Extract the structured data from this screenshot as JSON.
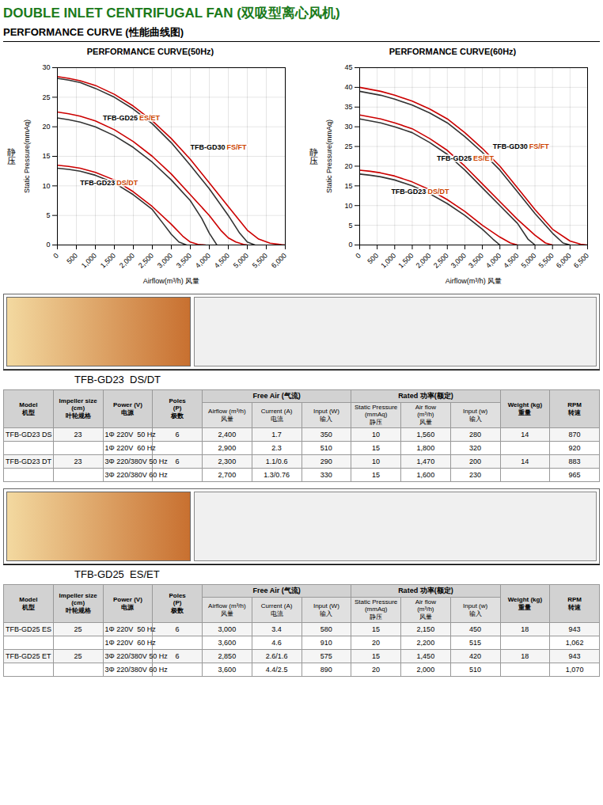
{
  "title": "DOUBLE INLET CENTRIFUGAL FAN (双吸型离心风机)",
  "subtitle": "PERFORMANCE CURVE (性能曲线图)",
  "chart_data": [
    {
      "type": "line",
      "title": "PERFORMANCE CURVE(50Hz)",
      "xlabel": "Airflow(m³/h) 风量",
      "ylabel": "Static Pressure(mmAq)",
      "ylabel_cn": "静压",
      "xlim": [
        0,
        6000
      ],
      "ylim": [
        0,
        30
      ],
      "xticks": [
        0,
        500,
        {
          "value": 1000,
          "label": "1,000"
        },
        {
          "value": 1500,
          "label": "1,500"
        },
        {
          "value": 2000,
          "label": "2,000"
        },
        {
          "value": 2500,
          "label": "2,500"
        },
        {
          "value": 3000,
          "label": "3,000"
        },
        {
          "value": 3500,
          "label": "3,500"
        },
        {
          "value": 4000,
          "label": "4,000"
        },
        {
          "value": 4500,
          "label": "4,500"
        },
        {
          "value": 5000,
          "label": "5,000"
        },
        {
          "value": 5500,
          "label": "5,500"
        },
        {
          "value": 6000,
          "label": "6,000"
        }
      ],
      "yticks": [
        0,
        5,
        10,
        15,
        20,
        25,
        30
      ],
      "grid": true,
      "series": [
        {
          "color": "#cc0000",
          "x": [
            0,
            300,
            600,
            1000,
            1500,
            2000,
            2500,
            3000,
            3500,
            4000,
            4500,
            5000,
            5300,
            5600,
            5900,
            6000
          ],
          "values": [
            28.5,
            28.2,
            27.8,
            27.0,
            25.5,
            23.5,
            21.0,
            18.0,
            14.5,
            10.5,
            6.5,
            2.5,
            1.0,
            0.3,
            0.05,
            0
          ]
        },
        {
          "color": "#333333",
          "x": [
            0,
            300,
            600,
            1000,
            1500,
            2000,
            2500,
            3000,
            3500,
            4000,
            4500,
            4800,
            5000,
            5200
          ],
          "values": [
            28.2,
            27.9,
            27.5,
            26.5,
            25.0,
            23.0,
            20.5,
            17.3,
            13.5,
            9.5,
            5.0,
            2.0,
            0.5,
            0
          ]
        },
        {
          "color": "#cc0000",
          "x": [
            0,
            300,
            600,
            1000,
            1500,
            2000,
            2500,
            3000,
            3500,
            4000,
            4300,
            4500,
            4700,
            4900,
            5000
          ],
          "values": [
            22.5,
            22.2,
            21.8,
            21.0,
            19.5,
            17.5,
            15.0,
            12.0,
            8.5,
            5.0,
            2.5,
            1.2,
            0.5,
            0.1,
            0
          ]
        },
        {
          "color": "#333333",
          "x": [
            0,
            300,
            600,
            1000,
            1500,
            2000,
            2500,
            3000,
            3500,
            3800,
            4000,
            4200
          ],
          "values": [
            21.5,
            21.2,
            20.8,
            20.0,
            18.5,
            16.5,
            14.0,
            11.0,
            7.5,
            4.5,
            2.0,
            0
          ]
        },
        {
          "color": "#cc0000",
          "x": [
            0,
            300,
            600,
            1000,
            1500,
            2000,
            2500,
            3000,
            3300,
            3500,
            3700,
            3900
          ],
          "values": [
            13.5,
            13.3,
            13.0,
            12.3,
            11.0,
            9.0,
            6.5,
            3.5,
            1.5,
            0.5,
            0.1,
            0
          ]
        },
        {
          "color": "#333333",
          "x": [
            0,
            300,
            600,
            1000,
            1500,
            2000,
            2500,
            2800,
            3000,
            3200,
            3400
          ],
          "values": [
            13.0,
            12.8,
            12.5,
            11.8,
            10.5,
            8.5,
            6.0,
            3.5,
            1.8,
            0.5,
            0
          ]
        }
      ],
      "annotations": [
        {
          "x": 3500,
          "y": 16.5,
          "parts": [
            {
              "text": "TFB-GD30"
            },
            {
              "text": "FS/FT",
              "color": "#cc4400"
            }
          ]
        },
        {
          "x": 1200,
          "y": 21.5,
          "parts": [
            {
              "text": "TFB-GD25"
            },
            {
              "text": "ES/ET",
              "color": "#cc4400"
            }
          ]
        },
        {
          "x": 600,
          "y": 10.5,
          "parts": [
            {
              "text": "TFB-GD23"
            },
            {
              "text": "DS/DT",
              "color": "#cc4400"
            }
          ]
        }
      ]
    },
    {
      "type": "line",
      "title": "PERFORMANCE CURVE(60Hz)",
      "xlabel": "Airflow(m³/h) 风量",
      "ylabel": "Static Pressure(mmAq)",
      "ylabel_cn": "静压",
      "xlim": [
        0,
        6500
      ],
      "ylim": [
        0,
        45
      ],
      "xticks": [
        0,
        500,
        {
          "value": 1000,
          "label": "1,000"
        },
        {
          "value": 1500,
          "label": "1,500"
        },
        {
          "value": 2000,
          "label": "2,000"
        },
        {
          "value": 2500,
          "label": "2,500"
        },
        {
          "value": 3000,
          "label": "3,000"
        },
        {
          "value": 3500,
          "label": "3,500"
        },
        {
          "value": 4000,
          "label": "4,000"
        },
        {
          "value": 4500,
          "label": "4,500"
        },
        {
          "value": 5000,
          "label": "5,000"
        },
        {
          "value": 5500,
          "label": "5,500"
        },
        {
          "value": 6000,
          "label": "6,000"
        },
        {
          "value": 6500,
          "label": "6,500"
        }
      ],
      "yticks": [
        0,
        5,
        10,
        15,
        20,
        25,
        30,
        35,
        40,
        45
      ],
      "grid": true,
      "series": [
        {
          "color": "#cc0000",
          "x": [
            0,
            300,
            600,
            1000,
            1500,
            2000,
            2500,
            3000,
            3500,
            4000,
            4500,
            5000,
            5500,
            6000,
            6300,
            6500
          ],
          "values": [
            40,
            39.5,
            39,
            38,
            36.5,
            34.5,
            32,
            28.5,
            24.5,
            20,
            14.5,
            9,
            4,
            1,
            0.2,
            0
          ]
        },
        {
          "color": "#333333",
          "x": [
            0,
            300,
            600,
            1000,
            1500,
            2000,
            2500,
            3000,
            3500,
            4000,
            4500,
            5000,
            5500,
            5800,
            6000
          ],
          "values": [
            39,
            38.5,
            38,
            37,
            35.5,
            33.5,
            31,
            27.5,
            23.5,
            19,
            13.5,
            8,
            3,
            0.5,
            0
          ]
        },
        {
          "color": "#cc0000",
          "x": [
            0,
            300,
            600,
            1000,
            1500,
            2000,
            2500,
            3000,
            3500,
            4000,
            4500,
            5000,
            5300,
            5500
          ],
          "values": [
            33,
            32.5,
            32,
            31,
            29.5,
            27,
            24,
            20,
            15.5,
            11,
            6.5,
            2.5,
            0.5,
            0
          ]
        },
        {
          "color": "#333333",
          "x": [
            0,
            300,
            600,
            1000,
            1500,
            2000,
            2500,
            3000,
            3500,
            4000,
            4500,
            4800,
            5000
          ],
          "values": [
            32,
            31.5,
            31,
            30,
            28.5,
            26,
            23,
            19,
            14.5,
            10,
            5.5,
            1.5,
            0
          ]
        },
        {
          "color": "#cc0000",
          "x": [
            0,
            300,
            600,
            1000,
            1500,
            2000,
            2500,
            3000,
            3500,
            4000,
            4300,
            4500
          ],
          "values": [
            19,
            18.7,
            18.3,
            17.5,
            16,
            14,
            11.5,
            8.5,
            5,
            2,
            0.5,
            0
          ]
        },
        {
          "color": "#333333",
          "x": [
            0,
            300,
            600,
            1000,
            1500,
            2000,
            2500,
            3000,
            3500,
            3800,
            4000
          ],
          "values": [
            18,
            17.7,
            17.3,
            16.5,
            15,
            13,
            10.5,
            7.5,
            4,
            1.5,
            0
          ]
        }
      ],
      "annotations": [
        {
          "x": 3800,
          "y": 25,
          "parts": [
            {
              "text": "TFB-GD30"
            },
            {
              "text": "FS/FT",
              "color": "#cc4400"
            }
          ]
        },
        {
          "x": 2200,
          "y": 22,
          "parts": [
            {
              "text": "TFB-GD25"
            },
            {
              "text": "ES/ET",
              "color": "#cc4400"
            }
          ]
        },
        {
          "x": 900,
          "y": 13.5,
          "parts": [
            {
              "text": "TFB-GD23"
            },
            {
              "text": "DS/DT",
              "color": "#cc4400"
            }
          ]
        }
      ]
    },
    {
      "type": "table",
      "title": "TFB-GD23  DS/DT",
      "columns": [
        {
          "label": "Model\n机型"
        },
        {
          "label": "Impeller size\n(cm)\n叶轮规格"
        },
        {
          "label": "Power (V)\n电源"
        },
        {
          "label": "Poles\n(P)\n极数"
        },
        {
          "label": "Airflow (m³/h)\n风量",
          "group": "Free Air (气流)"
        },
        {
          "label": "Current (A)\n电流",
          "group": "Free Air (气流)"
        },
        {
          "label": "Input (W)\n输入",
          "group": "Free Air (气流)"
        },
        {
          "label": "Static Pressure\n(mmAq)\n静压",
          "group": "Rated 功率(额定)"
        },
        {
          "label": "Air flow\n(m³/h)\n风量",
          "group": "Rated 功率(额定)"
        },
        {
          "label": "Input (w)\n输入",
          "group": "Rated 功率(额定)"
        },
        {
          "label": "Weight (kg)\n重量"
        },
        {
          "label": "RPM\n转速"
        }
      ],
      "rows": [
        [
          "TFB-GD23 DS",
          "23",
          "1Φ 220V  50 Hz",
          "6",
          "2,400",
          "1.7",
          "350",
          "10",
          "1,560",
          "280",
          "14",
          "870"
        ],
        [
          null,
          null,
          "1Φ 220V  60 Hz",
          null,
          "2,900",
          "2.3",
          "510",
          "15",
          "1,800",
          "320",
          null,
          "920"
        ],
        [
          "TFB-GD23 DT",
          "23",
          "3Φ 220/380V 50 Hz",
          "6",
          "2,300",
          "1.1/0.6",
          "290",
          "10",
          "1,470",
          "200",
          "14",
          "883"
        ],
        [
          null,
          null,
          "3Φ 220/380V 60 Hz",
          null,
          "2,700",
          "1.3/0.76",
          "330",
          "15",
          "1,600",
          "230",
          null,
          "965"
        ]
      ]
    },
    {
      "type": "table",
      "title": "TFB-GD25  ES/ET",
      "columns": [
        {
          "label": "Model\n机型"
        },
        {
          "label": "Impeller size\n(cm)\n叶轮规格"
        },
        {
          "label": "Power (V)\n电源"
        },
        {
          "label": "Poles\n(P)\n极数"
        },
        {
          "label": "Airflow (m³/h)\n风量",
          "group": "Free Air (气流)"
        },
        {
          "label": "Current (A)\n电流",
          "group": "Free Air (气流)"
        },
        {
          "label": "Input (W)\n输入",
          "group": "Free Air (气流)"
        },
        {
          "label": "Static Pressure\n(mmAq)\n静压",
          "group": "Rated 功率(额定)"
        },
        {
          "label": "Air flow\n(m³/h)\n风量",
          "group": "Rated 功率(额定)"
        },
        {
          "label": "Input (w)\n输入",
          "group": "Rated 功率(额定)"
        },
        {
          "label": "Weight (kg)\n重量"
        },
        {
          "label": "RPM\n转速"
        }
      ],
      "rows": [
        [
          "TFB-GD25 ES",
          "25",
          "1Φ 220V  50 Hz",
          "6",
          "3,000",
          "3.4",
          "580",
          "15",
          "2,150",
          "450",
          "18",
          "943"
        ],
        [
          null,
          null,
          "1Φ 220V  60 Hz",
          null,
          "3,600",
          "4.6",
          "910",
          "20",
          "2,200",
          "515",
          null,
          "1,062"
        ],
        [
          "TFB-GD25 ET",
          "25",
          "3Φ 220/380V 50 Hz",
          "6",
          "2,850",
          "2.6/1.6",
          "575",
          "15",
          "1,450",
          "420",
          "18",
          "943"
        ],
        [
          null,
          null,
          "3Φ 220/380V 60 Hz",
          null,
          "3,600",
          "4.4/2.5",
          "890",
          "20",
          "2,000",
          "510",
          null,
          "1,070"
        ]
      ]
    }
  ]
}
